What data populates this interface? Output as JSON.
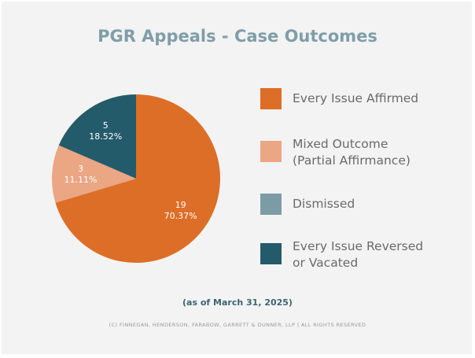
{
  "chart_data": {
    "type": "pie",
    "title": "PGR Appeals - Case Outcomes",
    "slices": [
      {
        "name": "Every Issue Affirmed",
        "value": 19,
        "percent": "70.37%",
        "color": "#dd6e27"
      },
      {
        "name": "Mixed Outcome (Partial Affirmance)",
        "value": 3,
        "percent": "11.11%",
        "color": "#eba684"
      },
      {
        "name": "Dismissed",
        "value": 0,
        "percent": "0%",
        "color": "#7b9ca5"
      },
      {
        "name": "Every Issue Reversed or Vacated",
        "value": 5,
        "percent": "18.52%",
        "color": "#245b6b"
      }
    ],
    "legend": [
      "Every Issue Affirmed",
      "Mixed Outcome\n(Partial Affirmance)",
      "Dismissed",
      "Every Issue Reversed\nor Vacated"
    ],
    "legend_position": "right",
    "note": "(as of March 31, 2025)",
    "copyright": "(C) FINNEGAN, HENDERSON, FARABOW, GARRETT & DUNNER, LLP | ALL RIGHTS RESERVED"
  }
}
